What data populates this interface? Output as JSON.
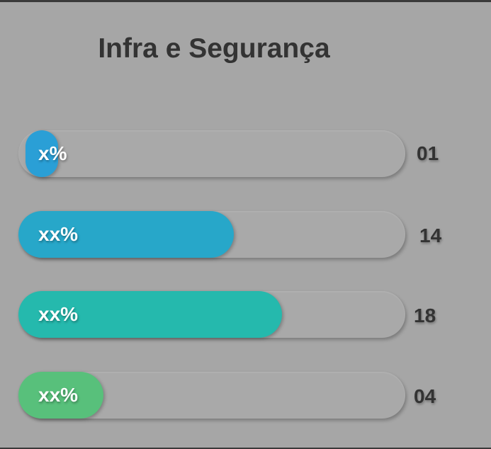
{
  "header": {
    "title": "Infra e Segurança"
  },
  "bars": [
    {
      "label": "x%",
      "count": "01",
      "color": "#2a9fd6"
    },
    {
      "label": "xx%",
      "count": "14",
      "color": "#27a7c9"
    },
    {
      "label": "xx%",
      "count": "18",
      "color": "#25b9ad"
    },
    {
      "label": "xx%",
      "count": "04",
      "color": "#58c07b"
    }
  ]
}
